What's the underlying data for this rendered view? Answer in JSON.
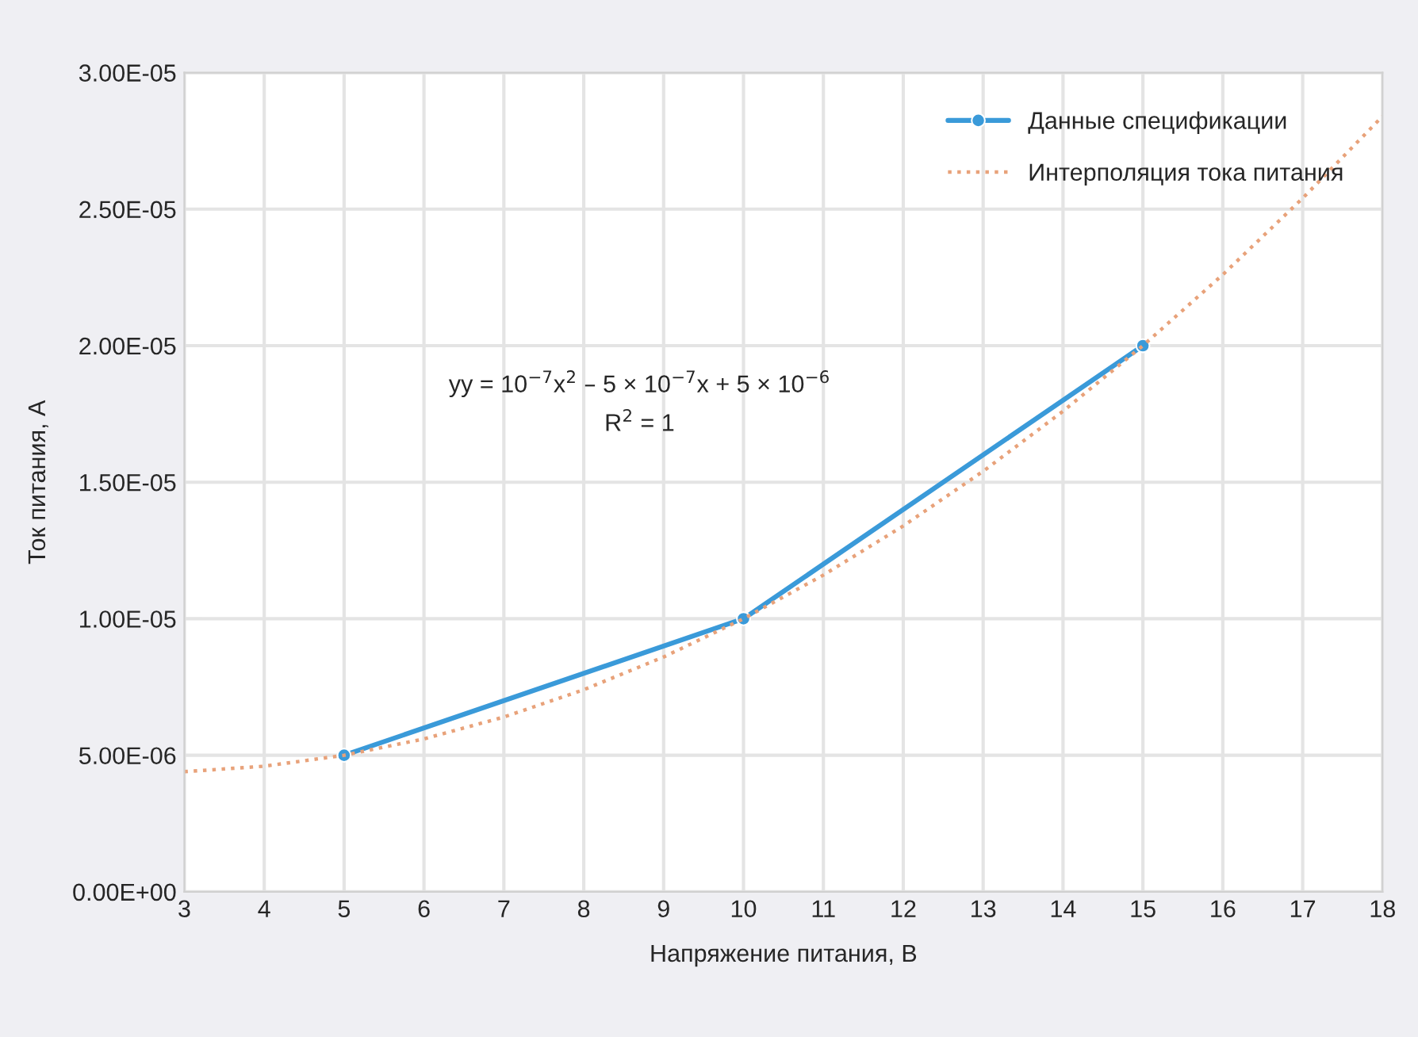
{
  "chart_data": {
    "type": "line",
    "xlabel": "Напряжение питания, В",
    "ylabel": "Ток питания, А",
    "series": [
      {
        "name": "Данные спецификации",
        "color": "#3a9ad9",
        "marker": "circle",
        "line_style": "solid",
        "x": [
          5,
          10,
          15
        ],
        "values": [
          5e-06,
          1e-05,
          2e-05
        ]
      },
      {
        "name": "Интерполяция тока питания",
        "color": "#e8a27a",
        "marker": "none",
        "line_style": "dotted",
        "x": [
          3,
          4,
          5,
          6,
          7,
          8,
          9,
          10,
          11,
          12,
          13,
          14,
          15,
          16,
          17,
          18
        ],
        "values": [
          4.4e-06,
          4.6e-06,
          5e-06,
          5.6e-06,
          6.4e-06,
          7.4e-06,
          8.6e-06,
          1e-05,
          1.16e-05,
          1.34e-05,
          1.54e-05,
          1.76e-05,
          2e-05,
          2.26e-05,
          2.54e-05,
          2.84e-05
        ]
      }
    ],
    "annotations": [
      "yy = 10$^{−7}$x$^{2}$ – 5 × 10$^{−7}$x + 5 × 10$^{−6}$",
      "R$^{2}$ = 1"
    ],
    "xlim": [
      3,
      18
    ],
    "xticks": [
      3,
      4,
      5,
      6,
      7,
      8,
      9,
      10,
      11,
      12,
      13,
      14,
      15,
      16,
      17,
      18
    ],
    "ylim": [
      0,
      3e-05
    ],
    "yticks": [
      {
        "value": 0,
        "label": "0.00E+00"
      },
      {
        "value": 5e-06,
        "label": "5.00E-06"
      },
      {
        "value": 1e-05,
        "label": "1.00E-05"
      },
      {
        "value": 1.5e-05,
        "label": "1.50E-05"
      },
      {
        "value": 2e-05,
        "label": "2.00E-05"
      },
      {
        "value": 2.5e-05,
        "label": "2.50E-05"
      },
      {
        "value": 3e-05,
        "label": "3.00E-05"
      }
    ],
    "grid": true,
    "legend": "top right"
  }
}
